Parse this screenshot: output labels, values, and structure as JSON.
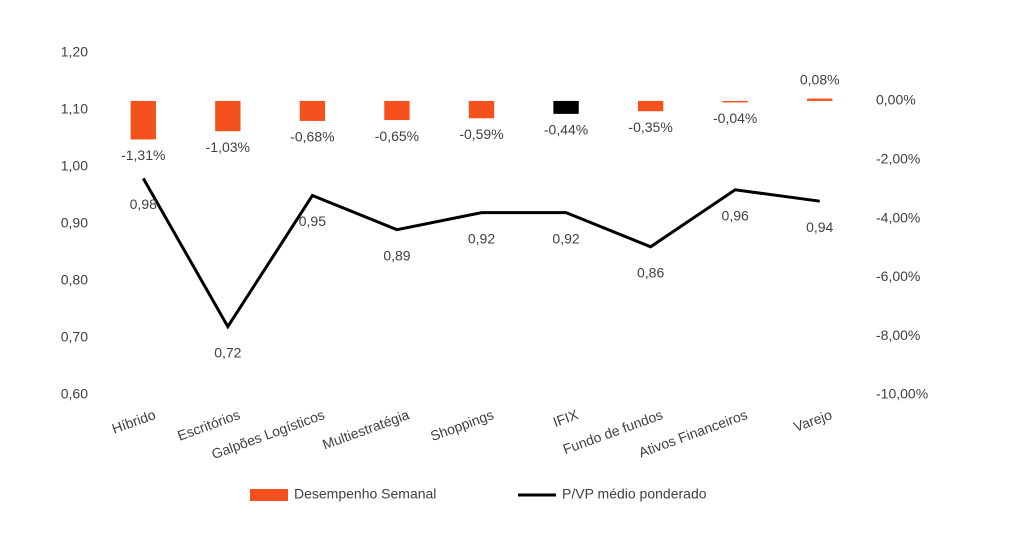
{
  "chart_data": {
    "type": "bar-line",
    "categories": [
      "Híbrido",
      "Escritórios",
      "Galpões Logísticos",
      "Multiestratégia",
      "Shoppings",
      "IFIX",
      "Fundo de fundos",
      "Ativos Financeiros",
      "Varejo"
    ],
    "series": [
      {
        "name": "Desempenho Semanal",
        "type": "bar",
        "axis": "y2",
        "color": "#f4511e",
        "colors": [
          "#f4511e",
          "#f4511e",
          "#f4511e",
          "#f4511e",
          "#f4511e",
          "#000000",
          "#f4511e",
          "#f4511e",
          "#f4511e"
        ],
        "values": [
          -1.31,
          -1.03,
          -0.68,
          -0.65,
          -0.59,
          -0.44,
          -0.35,
          -0.04,
          0.08
        ],
        "value_labels": [
          "-1,31%",
          "-1,03%",
          "-0,68%",
          "-0,65%",
          "-0,59%",
          "-0,44%",
          "-0,35%",
          "-0,04%",
          "0,08%"
        ]
      },
      {
        "name": "P/VP médio ponderado",
        "type": "line",
        "axis": "y",
        "color": "#000000",
        "values": [
          0.98,
          0.72,
          0.95,
          0.89,
          0.92,
          0.92,
          0.86,
          0.96,
          0.94
        ],
        "value_labels": [
          "0,98",
          "0,72",
          "0,95",
          "0,89",
          "0,92",
          "0,92",
          "0,86",
          "0,96",
          "0,94"
        ]
      }
    ],
    "ylim": [
      0.6,
      1.2
    ],
    "yticks": [
      {
        "value": 0.6,
        "label": "0,60"
      },
      {
        "value": 0.7,
        "label": "0,70"
      },
      {
        "value": 0.8,
        "label": "0,80"
      },
      {
        "value": 0.9,
        "label": "0,90"
      },
      {
        "value": 1.0,
        "label": "1,00"
      },
      {
        "value": 1.1,
        "label": "1,10"
      },
      {
        "value": 1.2,
        "label": "1,20"
      }
    ],
    "y2lim": [
      -10,
      1.63
    ],
    "y2ticks": [
      {
        "value": -10,
        "label": "-10,00%"
      },
      {
        "value": -8,
        "label": "-8,00%"
      },
      {
        "value": -6,
        "label": "-6,00%"
      },
      {
        "value": -4,
        "label": "-4,00%"
      },
      {
        "value": -2,
        "label": "-2,00%"
      },
      {
        "value": 0,
        "label": "0,00%"
      }
    ],
    "legend": "bottom"
  }
}
